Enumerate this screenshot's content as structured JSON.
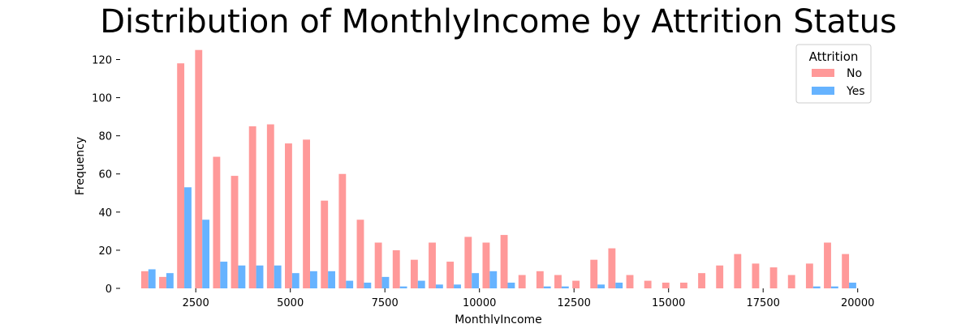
{
  "chart_data": {
    "type": "bar",
    "title": "Distribution of MonthlyIncome by Attrition Status",
    "xlabel": "MonthlyIncome",
    "ylabel": "Frequency",
    "xlim": [
      500,
      20500
    ],
    "ylim": [
      0,
      127
    ],
    "xticks": [
      2500,
      5000,
      7500,
      10000,
      12500,
      15000,
      17500,
      20000
    ],
    "yticks": [
      0,
      20,
      40,
      60,
      80,
      100,
      120
    ],
    "grid": false,
    "legend": {
      "title": "Attrition",
      "placement": "top-right"
    },
    "bin_start": 1009,
    "bin_width": 475,
    "series": [
      {
        "name": "No",
        "color": "#ff9999",
        "values": [
          9,
          6,
          118,
          125,
          69,
          59,
          85,
          86,
          76,
          78,
          46,
          60,
          36,
          24,
          20,
          15,
          24,
          14,
          27,
          24,
          28,
          7,
          9,
          7,
          4,
          15,
          21,
          7,
          4,
          3,
          3,
          8,
          12,
          18,
          13,
          11,
          7,
          13,
          24,
          18
        ]
      },
      {
        "name": "Yes",
        "color": "#66b3ff",
        "values": [
          10,
          8,
          53,
          36,
          14,
          12,
          12,
          12,
          8,
          9,
          9,
          4,
          3,
          6,
          1,
          4,
          2,
          2,
          8,
          9,
          3,
          0,
          1,
          1,
          0,
          2,
          3,
          0,
          0,
          0,
          0,
          0,
          0,
          0,
          0,
          0,
          0,
          1,
          1,
          3
        ]
      }
    ]
  }
}
